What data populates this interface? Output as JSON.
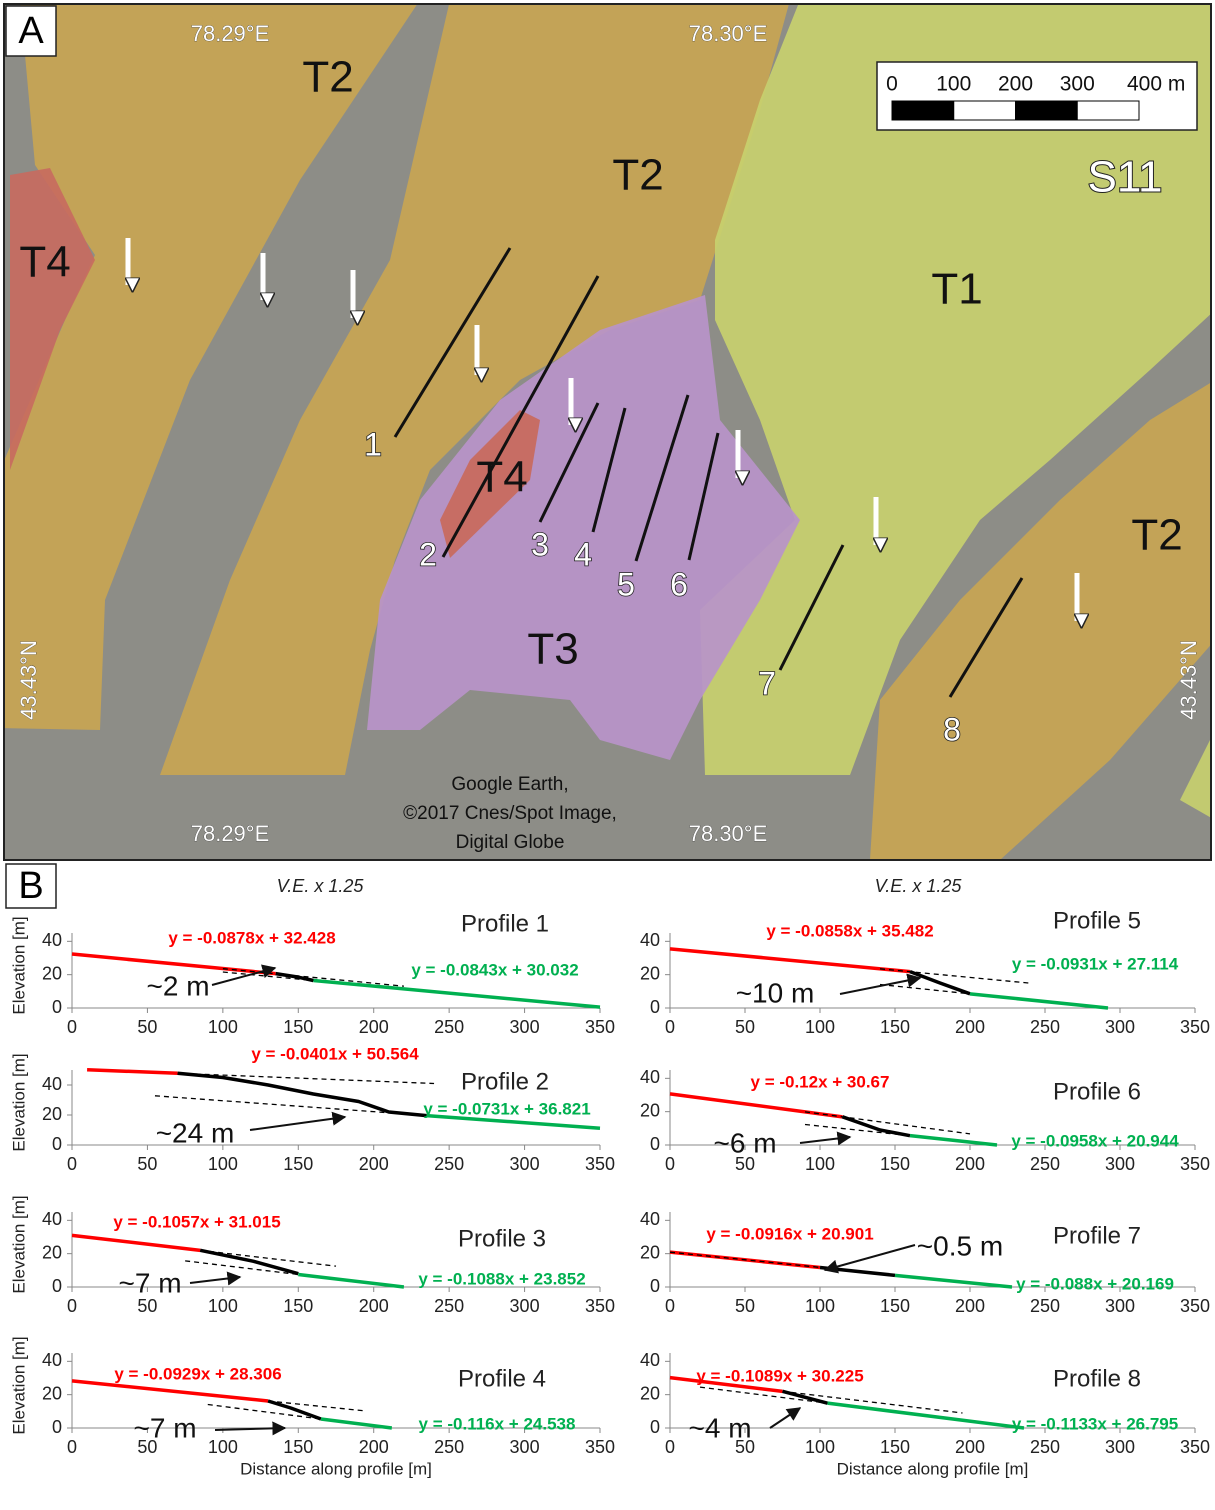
{
  "map": {
    "panel_label": "A",
    "lon_labels": [
      "78.29°E",
      "78.30°E",
      "78.29°E",
      "78.30°E"
    ],
    "lat_labels": [
      "43.43°N",
      "43.43°N"
    ],
    "units": [
      "T2",
      "T2",
      "T4",
      "T1",
      "T4",
      "T3",
      "T2",
      "S11"
    ],
    "profile_labels": [
      "1",
      "2",
      "3",
      "4",
      "5",
      "6",
      "7",
      "8"
    ],
    "scale_bar": {
      "ticks": [
        0,
        100,
        200,
        300,
        {
          "value": 400,
          "label": "400 m"
        }
      ]
    },
    "credit": [
      "Google Earth,",
      "©2017 Cnes/Spot Image,",
      "Digital Globe"
    ]
  },
  "panel_b": {
    "label": "B"
  },
  "chart_data": [
    {
      "type": "line",
      "title": "Profile 1",
      "subtitle": "V.E. x 1.25",
      "ylabel": "Elevation [m]",
      "xlim": [
        0,
        350
      ],
      "xticks": [
        0,
        50,
        100,
        150,
        200,
        250,
        300,
        350
      ],
      "ylim": [
        0,
        45
      ],
      "yticks": [
        0,
        20,
        40
      ],
      "series": [
        {
          "color": "#ff0000",
          "x": [
            0,
            135
          ],
          "values": [
            32.4,
            20.6
          ]
        },
        {
          "color": "#000000",
          "x": [
            135,
            150,
            160
          ],
          "values": [
            20.6,
            18.5,
            16.5
          ]
        },
        {
          "color": "#00b050",
          "x": [
            160,
            350
          ],
          "values": [
            16.5,
            0.5
          ]
        },
        {
          "color": "#000000",
          "dash": true,
          "x": [
            100,
            220
          ],
          "values": [
            23.6,
            13.1
          ]
        },
        {
          "color": "#000000",
          "dash": true,
          "x": [
            100,
            160
          ],
          "values": [
            21.6,
            16.5
          ]
        }
      ],
      "annotations": [
        {
          "text": "y = -0.0878x + 32.428",
          "color": "#ff0000"
        },
        {
          "text": "y = -0.0843x + 30.032",
          "color": "#00b050"
        },
        {
          "text": "~2 m",
          "color": "#111111",
          "arrow": true
        }
      ]
    },
    {
      "type": "line",
      "title": "Profile 2",
      "ylabel": "Elevation [m]",
      "xlim": [
        0,
        350
      ],
      "xticks": [
        0,
        50,
        100,
        150,
        200,
        250,
        300,
        350
      ],
      "ylim": [
        0,
        50
      ],
      "yticks": [
        0,
        20,
        40
      ],
      "series": [
        {
          "color": "#ff0000",
          "x": [
            10,
            70
          ],
          "values": [
            50.2,
            47.8
          ]
        },
        {
          "color": "#000000",
          "x": [
            70,
            100,
            130,
            160,
            190,
            210,
            235
          ],
          "values": [
            47.8,
            45,
            40,
            34,
            29,
            22,
            19.6
          ]
        },
        {
          "color": "#00b050",
          "x": [
            235,
            350
          ],
          "values": [
            19.6,
            11.2
          ]
        },
        {
          "color": "#000000",
          "dash": true,
          "x": [
            70,
            240
          ],
          "values": [
            47.8,
            41
          ]
        },
        {
          "color": "#000000",
          "dash": true,
          "x": [
            55,
            210
          ],
          "values": [
            32.8,
            21.5
          ]
        }
      ],
      "annotations": [
        {
          "text": "y = -0.0401x + 50.564",
          "color": "#ff0000"
        },
        {
          "text": "y = -0.0731x + 36.821",
          "color": "#00b050"
        },
        {
          "text": "~24 m",
          "color": "#111111",
          "arrow": true
        }
      ]
    },
    {
      "type": "line",
      "title": "Profile 3",
      "ylabel": "Elevation [m]",
      "xlim": [
        0,
        350
      ],
      "xticks": [
        0,
        50,
        100,
        150,
        200,
        250,
        300,
        350
      ],
      "ylim": [
        0,
        45
      ],
      "yticks": [
        0,
        20,
        40
      ],
      "series": [
        {
          "color": "#ff0000",
          "x": [
            0,
            85
          ],
          "values": [
            31,
            22
          ]
        },
        {
          "color": "#000000",
          "x": [
            85,
            120,
            150
          ],
          "values": [
            22,
            15.5,
            8
          ]
        },
        {
          "color": "#00b050",
          "x": [
            150,
            220
          ],
          "values": [
            7.5,
            0
          ]
        },
        {
          "color": "#000000",
          "dash": true,
          "x": [
            85,
            175
          ],
          "values": [
            22,
            12.5
          ]
        },
        {
          "color": "#000000",
          "dash": true,
          "x": [
            75,
            150
          ],
          "values": [
            15.7,
            7.5
          ]
        }
      ],
      "annotations": [
        {
          "text": "y = -0.1057x + 31.015",
          "color": "#ff0000"
        },
        {
          "text": "y = -0.1088x + 23.852",
          "color": "#00b050"
        },
        {
          "text": "~7 m",
          "color": "#111111",
          "arrow": true
        }
      ]
    },
    {
      "type": "line",
      "title": "Profile 4",
      "ylabel": "Elevation [m]",
      "xlabel": "Distance along profile [m]",
      "xlim": [
        0,
        350
      ],
      "xticks": [
        0,
        50,
        100,
        150,
        200,
        250,
        300,
        350
      ],
      "ylim": [
        0,
        45
      ],
      "yticks": [
        0,
        20,
        40
      ],
      "series": [
        {
          "color": "#ff0000",
          "x": [
            0,
            130
          ],
          "values": [
            28.3,
            16.2
          ]
        },
        {
          "color": "#000000",
          "x": [
            130,
            145,
            165
          ],
          "values": [
            16.2,
            12,
            5.4
          ]
        },
        {
          "color": "#00b050",
          "x": [
            165,
            212
          ],
          "values": [
            5.4,
            0
          ]
        },
        {
          "color": "#000000",
          "dash": true,
          "x": [
            130,
            195
          ],
          "values": [
            16.2,
            10.2
          ]
        },
        {
          "color": "#000000",
          "dash": true,
          "x": [
            90,
            165
          ],
          "values": [
            14.1,
            5.4
          ]
        }
      ],
      "annotations": [
        {
          "text": "y = -0.0929x + 28.306",
          "color": "#ff0000"
        },
        {
          "text": "y = -0.116x + 24.538",
          "color": "#00b050"
        },
        {
          "text": "~7 m",
          "color": "#111111",
          "arrow": true
        }
      ]
    },
    {
      "type": "line",
      "title": "Profile 5",
      "subtitle": "V.E. x 1.25",
      "xlim": [
        0,
        350
      ],
      "xticks": [
        0,
        50,
        100,
        150,
        200,
        250,
        300,
        350
      ],
      "ylim": [
        0,
        45
      ],
      "yticks": [
        0,
        20,
        40
      ],
      "series": [
        {
          "color": "#ff0000",
          "x": [
            0,
            160
          ],
          "values": [
            35.5,
            21.8
          ]
        },
        {
          "color": "#000000",
          "x": [
            160,
            180,
            200
          ],
          "values": [
            21.8,
            15,
            8.5
          ]
        },
        {
          "color": "#00b050",
          "x": [
            200,
            292
          ],
          "values": [
            8.5,
            0
          ]
        },
        {
          "color": "#000000",
          "dash": true,
          "x": [
            140,
            240
          ],
          "values": [
            23.5,
            14.9
          ]
        },
        {
          "color": "#000000",
          "dash": true,
          "x": [
            140,
            200
          ],
          "values": [
            14.1,
            8.5
          ]
        }
      ],
      "annotations": [
        {
          "text": "y = -0.0858x + 35.482",
          "color": "#ff0000"
        },
        {
          "text": "y = -0.0931x + 27.114",
          "color": "#00b050"
        },
        {
          "text": "~10 m",
          "color": "#111111",
          "arrow": true
        }
      ]
    },
    {
      "type": "line",
      "title": "Profile 6",
      "xlim": [
        0,
        350
      ],
      "xticks": [
        0,
        50,
        100,
        150,
        200,
        250,
        300,
        350
      ],
      "ylim": [
        0,
        45
      ],
      "yticks": [
        0,
        20,
        40
      ],
      "series": [
        {
          "color": "#ff0000",
          "x": [
            0,
            115
          ],
          "values": [
            30.7,
            16.9
          ]
        },
        {
          "color": "#000000",
          "x": [
            115,
            140,
            160
          ],
          "values": [
            16.9,
            9,
            5.6
          ]
        },
        {
          "color": "#00b050",
          "x": [
            160,
            218
          ],
          "values": [
            5.6,
            0
          ]
        },
        {
          "color": "#000000",
          "dash": true,
          "x": [
            90,
            200
          ],
          "values": [
            19.9,
            6.7
          ]
        },
        {
          "color": "#000000",
          "dash": true,
          "x": [
            90,
            160
          ],
          "values": [
            12.3,
            5.6
          ]
        }
      ],
      "annotations": [
        {
          "text": "y = -0.12x + 30.67",
          "color": "#ff0000"
        },
        {
          "text": "y = -0.0958x + 20.944",
          "color": "#00b050"
        },
        {
          "text": "~6 m",
          "color": "#111111",
          "arrow": true
        }
      ]
    },
    {
      "type": "line",
      "title": "Profile 7",
      "xlim": [
        0,
        350
      ],
      "xticks": [
        0,
        50,
        100,
        150,
        200,
        250,
        300,
        350
      ],
      "ylim": [
        0,
        45
      ],
      "yticks": [
        0,
        20,
        40
      ],
      "series": [
        {
          "color": "#ff0000",
          "x": [
            0,
            100
          ],
          "values": [
            20.9,
            11.7
          ]
        },
        {
          "color": "#000000",
          "x": [
            100,
            150
          ],
          "values": [
            11.7,
            7
          ]
        },
        {
          "color": "#00b050",
          "x": [
            150,
            228
          ],
          "values": [
            7,
            0
          ]
        },
        {
          "color": "#000000",
          "dash": true,
          "x": [
            0,
            150
          ],
          "values": [
            20.9,
            7.2
          ]
        }
      ],
      "annotations": [
        {
          "text": "y = -0.0916x + 20.901",
          "color": "#ff0000"
        },
        {
          "text": "y = -0.088x + 20.169",
          "color": "#00b050"
        },
        {
          "text": "~0.5 m",
          "color": "#111111",
          "arrow": true
        }
      ]
    },
    {
      "type": "line",
      "title": "Profile 8",
      "xlabel": "Distance along profile [m]",
      "xlim": [
        0,
        350
      ],
      "xticks": [
        0,
        50,
        100,
        150,
        200,
        250,
        300,
        350
      ],
      "ylim": [
        0,
        45
      ],
      "yticks": [
        0,
        20,
        40
      ],
      "series": [
        {
          "color": "#ff0000",
          "x": [
            0,
            75
          ],
          "values": [
            30.2,
            22
          ]
        },
        {
          "color": "#000000",
          "x": [
            75,
            105
          ],
          "values": [
            22,
            14.9
          ]
        },
        {
          "color": "#00b050",
          "x": [
            105,
            236
          ],
          "values": [
            14.9,
            0
          ]
        },
        {
          "color": "#000000",
          "dash": true,
          "x": [
            75,
            195
          ],
          "values": [
            22,
            9
          ]
        },
        {
          "color": "#000000",
          "dash": true,
          "x": [
            20,
            105
          ],
          "values": [
            24.5,
            14.9
          ]
        }
      ],
      "annotations": [
        {
          "text": "y = -0.1089x + 30.225",
          "color": "#ff0000"
        },
        {
          "text": "y = -0.1133x + 26.795",
          "color": "#00b050"
        },
        {
          "text": "~4 m",
          "color": "#111111",
          "arrow": true
        }
      ]
    }
  ]
}
